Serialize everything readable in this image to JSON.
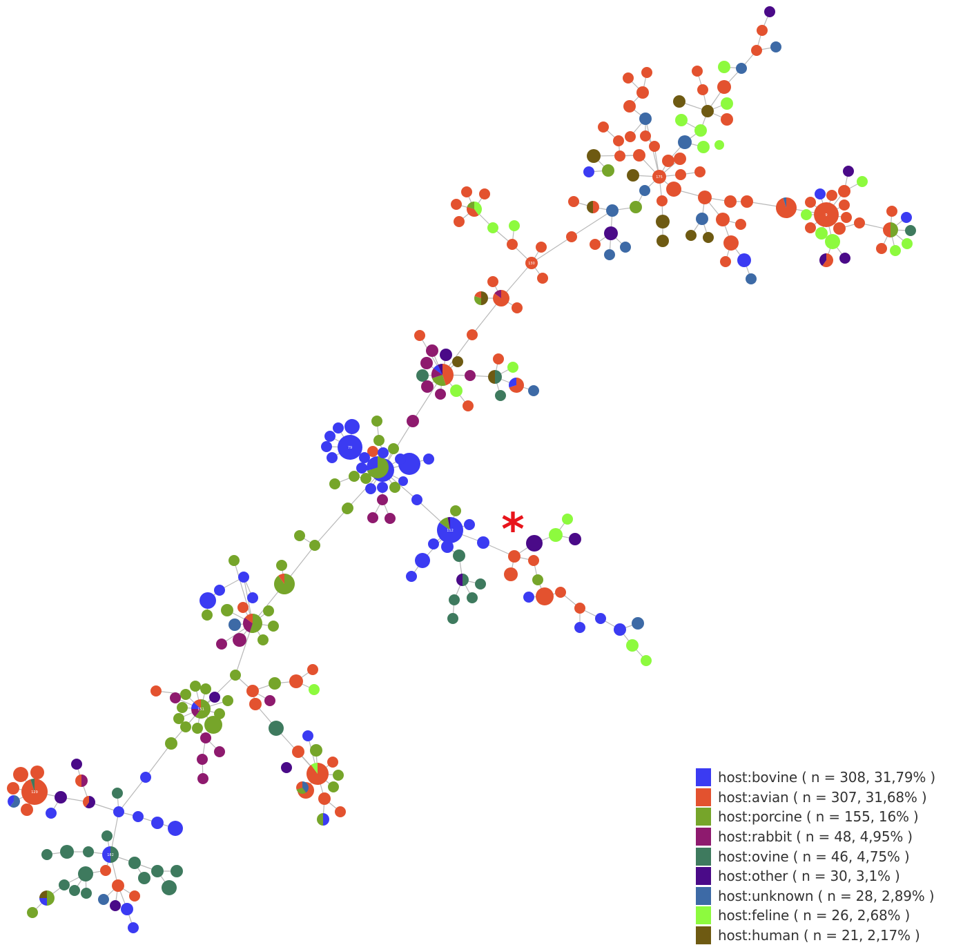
{
  "marker": {
    "symbol": "*"
  },
  "colors": {
    "bovine": "#3b3bf2",
    "avian": "#e3522f",
    "porcine": "#76a52a",
    "rabbit": "#8e1a6e",
    "ovine": "#3e7a5e",
    "other": "#4a0a88",
    "unknown": "#3d6aa6",
    "feline": "#8dfa3e",
    "human": "#6e5a12",
    "edge": "#b8b8b8"
  },
  "legend": [
    {
      "key": "bovine",
      "label": "host:bovine ( n = 308, 31,79% )"
    },
    {
      "key": "avian",
      "label": "host:avian ( n = 307, 31,68% )"
    },
    {
      "key": "porcine",
      "label": "host:porcine ( n = 155, 16% )"
    },
    {
      "key": "rabbit",
      "label": "host:rabbit ( n = 48, 4,95% )"
    },
    {
      "key": "ovine",
      "label": "host:ovine ( n = 46, 4,75% )"
    },
    {
      "key": "other",
      "label": "host:other ( n = 30, 3,1% )"
    },
    {
      "key": "unknown",
      "label": "host:unknown ( n = 28, 2,89% )"
    },
    {
      "key": "feline",
      "label": "host:feline ( n = 26, 2,68% )"
    },
    {
      "key": "human",
      "label": "host:human ( n = 21, 2,17% )"
    }
  ],
  "nodes": [
    {
      "name": "avian-hub-top",
      "host": "avian",
      "label": "175"
    },
    {
      "name": "avian-hub-right",
      "host": "avian",
      "label": "9"
    },
    {
      "name": "avian-hub-mid",
      "host": "avian",
      "label": "130"
    },
    {
      "name": "porcine-hub",
      "host": "porcine",
      "label": ""
    },
    {
      "name": "bovine-hub-upper",
      "host": "bovine",
      "label": "79"
    },
    {
      "name": "bovine-hub-center",
      "host": "bovine",
      "label": ""
    },
    {
      "name": "bovine-hub-lower",
      "host": "bovine",
      "label": "112"
    },
    {
      "name": "porcine-hub-left",
      "host": "porcine",
      "label": ""
    },
    {
      "name": "porcine-hub-low",
      "host": "porcine",
      "label": "151"
    },
    {
      "name": "avian-hub-left",
      "host": "avian",
      "label": "129"
    },
    {
      "name": "avian-hub-bottom",
      "host": "avian",
      "label": ""
    },
    {
      "name": "ovine-hub-bottom",
      "host": "ovine",
      "label": "182"
    }
  ]
}
